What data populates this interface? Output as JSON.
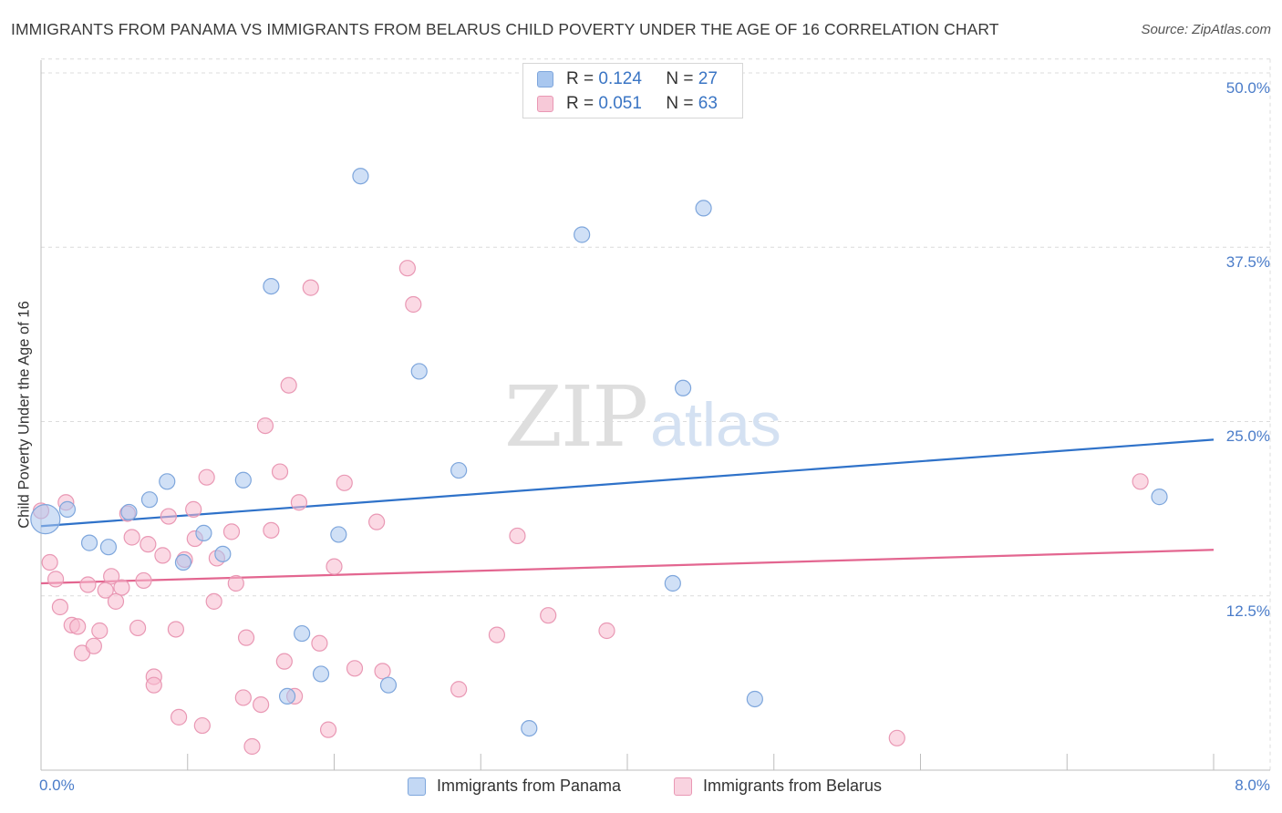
{
  "title": "IMMIGRANTS FROM PANAMA VS IMMIGRANTS FROM BELARUS CHILD POVERTY UNDER THE AGE OF 16 CORRELATION CHART",
  "source": "Source: ZipAtlas.com",
  "watermark": {
    "zip": "ZIP",
    "atlas": "atlas"
  },
  "legend_stats": {
    "panama": {
      "r_label": "R = ",
      "r_value": "0.124",
      "n_label": "N = ",
      "n_value": "27"
    },
    "belarus": {
      "r_label": "R = ",
      "r_value": "0.051",
      "n_label": "N = ",
      "n_value": "63"
    }
  },
  "chart_data": {
    "type": "scatter",
    "title": "IMMIGRANTS FROM PANAMA VS IMMIGRANTS FROM BELARUS CHILD POVERTY UNDER THE AGE OF 16 CORRELATION CHART",
    "xlabel": "",
    "ylabel": "Child Poverty Under the Age of 16",
    "xlim": [
      0,
      8
    ],
    "ylim": [
      0,
      51
    ],
    "x_tick_labels": [
      "0.0%",
      "8.0%"
    ],
    "y_ticks": [
      12.5,
      25.0,
      37.5,
      50.0
    ],
    "y_tick_labels": [
      "12.5%",
      "25.0%",
      "37.5%",
      "50.0%"
    ],
    "grid": true,
    "legend_position": "top-center",
    "series": [
      {
        "name": "Immigrants from Panama",
        "color": "#a9c7ef",
        "stroke": "#7ea6dc",
        "line_color": "#2f72c9",
        "trend": {
          "x": [
            0,
            8
          ],
          "y": [
            17.5,
            23.7
          ]
        },
        "points": [
          [
            0.03,
            18.0
          ],
          [
            0.18,
            18.7
          ],
          [
            0.33,
            16.3
          ],
          [
            0.46,
            16.0
          ],
          [
            0.6,
            18.5
          ],
          [
            0.74,
            19.4
          ],
          [
            0.86,
            20.7
          ],
          [
            0.97,
            14.9
          ],
          [
            1.11,
            17.0
          ],
          [
            1.24,
            15.5
          ],
          [
            1.38,
            20.8
          ],
          [
            1.57,
            34.7
          ],
          [
            1.68,
            5.3
          ],
          [
            1.78,
            9.8
          ],
          [
            1.91,
            6.9
          ],
          [
            2.03,
            16.9
          ],
          [
            2.18,
            42.6
          ],
          [
            2.37,
            6.1
          ],
          [
            2.58,
            28.6
          ],
          [
            2.85,
            21.5
          ],
          [
            3.33,
            3.0
          ],
          [
            3.69,
            38.4
          ],
          [
            4.31,
            13.4
          ],
          [
            4.38,
            27.4
          ],
          [
            4.52,
            40.3
          ],
          [
            4.87,
            5.1
          ],
          [
            7.63,
            19.6
          ]
        ]
      },
      {
        "name": "Immigrants from Belarus",
        "color": "#f7b9cd",
        "stroke": "#e998b4",
        "line_color": "#e36690",
        "trend": {
          "x": [
            0,
            8
          ],
          "y": [
            13.4,
            15.8
          ]
        },
        "points": [
          [
            0.0,
            18.6
          ],
          [
            0.06,
            14.9
          ],
          [
            0.1,
            13.7
          ],
          [
            0.13,
            11.7
          ],
          [
            0.17,
            19.2
          ],
          [
            0.21,
            10.4
          ],
          [
            0.25,
            10.3
          ],
          [
            0.28,
            8.4
          ],
          [
            0.32,
            13.3
          ],
          [
            0.36,
            8.9
          ],
          [
            0.4,
            10.0
          ],
          [
            0.44,
            12.9
          ],
          [
            0.48,
            13.9
          ],
          [
            0.51,
            12.1
          ],
          [
            0.55,
            13.1
          ],
          [
            0.59,
            18.4
          ],
          [
            0.62,
            16.7
          ],
          [
            0.66,
            10.2
          ],
          [
            0.7,
            13.6
          ],
          [
            0.73,
            16.2
          ],
          [
            0.77,
            6.7
          ],
          [
            0.77,
            6.1
          ],
          [
            0.83,
            15.4
          ],
          [
            0.87,
            18.2
          ],
          [
            0.92,
            10.1
          ],
          [
            0.94,
            3.8
          ],
          [
            0.98,
            15.1
          ],
          [
            1.04,
            18.7
          ],
          [
            1.05,
            16.6
          ],
          [
            1.1,
            3.2
          ],
          [
            1.13,
            21.0
          ],
          [
            1.18,
            12.1
          ],
          [
            1.2,
            15.2
          ],
          [
            1.3,
            17.1
          ],
          [
            1.33,
            13.4
          ],
          [
            1.38,
            5.2
          ],
          [
            1.4,
            9.5
          ],
          [
            1.44,
            1.7
          ],
          [
            1.5,
            4.7
          ],
          [
            1.53,
            24.7
          ],
          [
            1.57,
            17.2
          ],
          [
            1.63,
            21.4
          ],
          [
            1.66,
            7.8
          ],
          [
            1.69,
            27.6
          ],
          [
            1.73,
            5.3
          ],
          [
            1.76,
            19.2
          ],
          [
            1.84,
            34.6
          ],
          [
            1.9,
            9.1
          ],
          [
            1.96,
            2.9
          ],
          [
            2.0,
            14.6
          ],
          [
            2.07,
            20.6
          ],
          [
            2.14,
            7.3
          ],
          [
            2.29,
            17.8
          ],
          [
            2.33,
            7.1
          ],
          [
            2.5,
            36.0
          ],
          [
            2.54,
            33.4
          ],
          [
            2.85,
            5.8
          ],
          [
            3.11,
            9.7
          ],
          [
            3.25,
            16.8
          ],
          [
            3.46,
            11.1
          ],
          [
            3.86,
            10.0
          ],
          [
            5.84,
            2.3
          ],
          [
            7.5,
            20.7
          ]
        ]
      }
    ]
  },
  "legend_bottom": {
    "panama": "Immigrants from Panama",
    "belarus": "Immigrants from Belarus"
  }
}
